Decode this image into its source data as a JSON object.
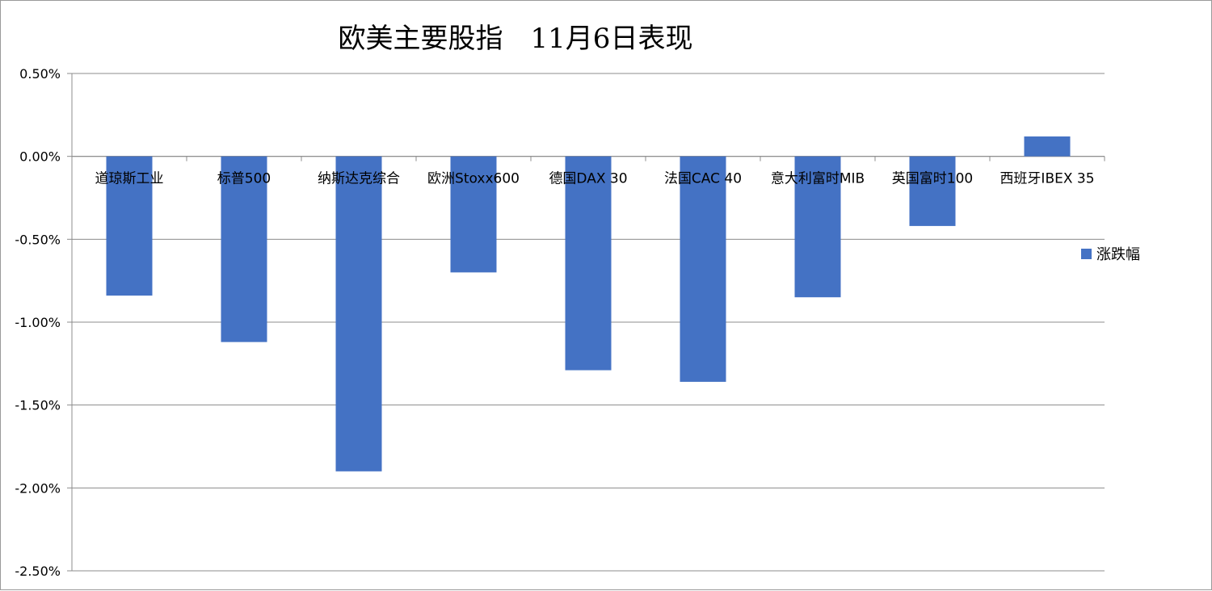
{
  "chart_data": {
    "type": "bar",
    "title": "欧美主要股指　11月6日表现",
    "categories": [
      "道琼斯工业",
      "标普500",
      "纳斯达克综合",
      "欧洲Stoxx600",
      "德国DAX 30",
      "法国CAC 40",
      "意大利富时MIB",
      "英国富时100",
      "西班牙IBEX 35"
    ],
    "series": [
      {
        "name": "涨跌幅",
        "values": [
          -0.0084,
          -0.0112,
          -0.019,
          -0.007,
          -0.0129,
          -0.0136,
          -0.0085,
          -0.0042,
          0.0012
        ]
      }
    ],
    "ylim": [
      -0.025,
      0.005
    ],
    "yticks": [
      0.005,
      0.0,
      -0.005,
      -0.01,
      -0.015,
      -0.02,
      -0.025
    ],
    "ytick_labels": [
      "0.50%",
      "0.00%",
      "-0.50%",
      "-1.00%",
      "-1.50%",
      "-2.00%",
      "-2.50%"
    ],
    "grid": true,
    "legend_position": "right",
    "bar_color": "#4472C4"
  }
}
